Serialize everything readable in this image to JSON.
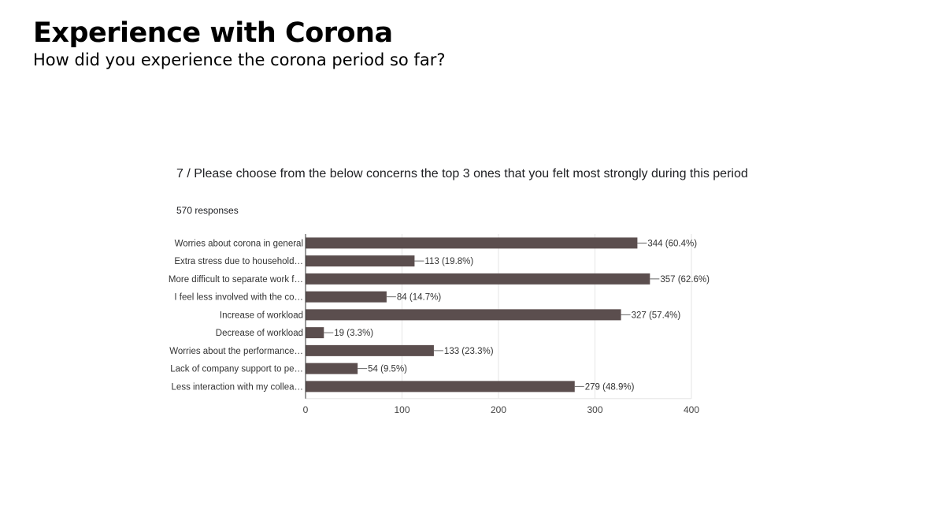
{
  "slide": {
    "title": "Experience with Corona",
    "subtitle": "How did you experience the corona period so far?"
  },
  "chart_data": {
    "type": "bar",
    "orientation": "horizontal",
    "title": "7 / Please choose from the below concerns the top 3 ones that you felt most strongly during this period",
    "subtitle": "570 responses",
    "categories": [
      "Worries about corona in general",
      "Extra stress due to household…",
      "More difficult to separate work f…",
      "I feel less involved with the co…",
      "Increase of workload",
      "Decrease of workload",
      "Worries about the performance…",
      "Lack of company support to pe…",
      "Less interaction with my collea…"
    ],
    "values": [
      344,
      113,
      357,
      84,
      327,
      19,
      133,
      54,
      279
    ],
    "data_labels": [
      "344 (60.4%)",
      "113 (19.8%)",
      "357 (62.6%)",
      "84 (14.7%)",
      "327 (57.4%)",
      "19 (3.3%)",
      "133 (23.3%)",
      "54 (9.5%)",
      "279 (48.9%)"
    ],
    "xlim": [
      0,
      400
    ],
    "xticks": [
      "0",
      "100",
      "200",
      "300",
      "400"
    ],
    "grid": true,
    "colors": {
      "bar": "#5b4e4e",
      "grid": "#e6e6e6",
      "axis": "#333333",
      "text": "#333333"
    }
  }
}
